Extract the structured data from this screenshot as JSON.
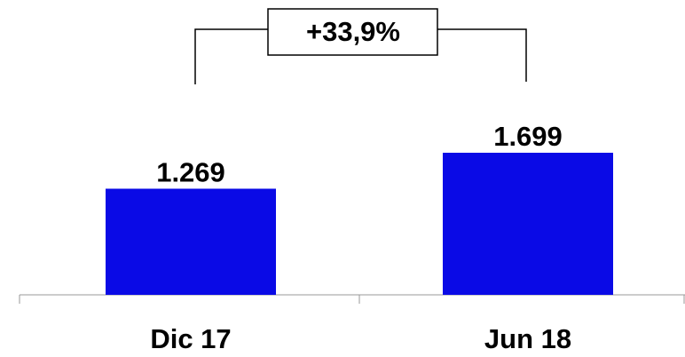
{
  "chart_data": {
    "type": "bar",
    "categories": [
      "Dic 17",
      "Jun 18"
    ],
    "values": [
      1269,
      1699
    ],
    "value_labels": [
      "1.269",
      "1.699"
    ],
    "color": "#0a0ae6",
    "annotation": "+33,9%"
  }
}
